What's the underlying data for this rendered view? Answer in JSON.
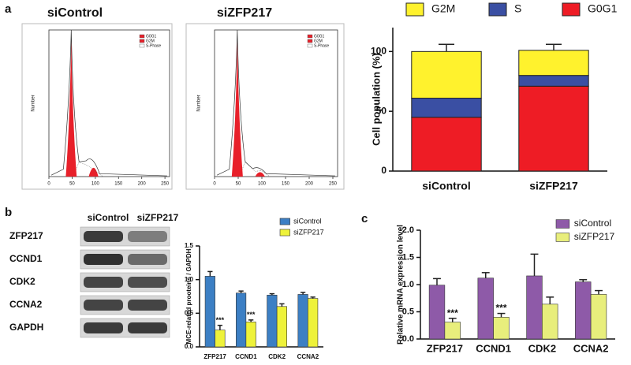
{
  "panel_labels": [
    "a",
    "b",
    "c"
  ],
  "blot": {
    "columns": [
      "siControl",
      "siZFP217"
    ],
    "rows": [
      "ZFP217",
      "CCND1",
      "CDK2",
      "CCNA2",
      "GAPDH"
    ]
  },
  "chart_data": [
    {
      "type": "flow",
      "title": "siControl",
      "ylabel": "Number",
      "xlim": [
        0,
        260
      ],
      "xticks": [
        0,
        50,
        100,
        150,
        200,
        250
      ],
      "legend": [
        {
          "name": "G0G1",
          "color": "#e8202a"
        },
        {
          "name": "G2M",
          "color": "#e8202a"
        },
        {
          "name": "S-Phase",
          "color": "#ffffff"
        }
      ]
    },
    {
      "type": "flow",
      "title": "siZFP217",
      "ylabel": "Number",
      "xlim": [
        0,
        260
      ],
      "xticks": [
        0,
        50,
        100,
        150,
        200,
        250
      ],
      "legend": [
        {
          "name": "G0G1",
          "color": "#e8202a"
        },
        {
          "name": "G2M",
          "color": "#e8202a"
        },
        {
          "name": "S-Phase",
          "color": "#ffffff"
        }
      ]
    },
    {
      "type": "stacked",
      "ylabel": "Cell population (%)",
      "categories": [
        "siControl",
        "siZFP217"
      ],
      "ylim": [
        0,
        120
      ],
      "yticks": [
        0,
        50,
        100
      ],
      "series": [
        {
          "name": "G0G1",
          "color": "#ee1c25",
          "values": [
            45,
            71
          ],
          "errors": [
            3,
            3
          ]
        },
        {
          "name": "S",
          "color": "#3a4fa3",
          "values": [
            16,
            9
          ],
          "errors": [
            3,
            2
          ]
        },
        {
          "name": "G2M",
          "color": "#fff22d",
          "values": [
            39,
            21
          ],
          "errors": [
            6,
            5
          ]
        }
      ]
    },
    {
      "type": "grouped",
      "ylabel": "MCE-related prooteins / GAPDH",
      "categories": [
        "ZFP217",
        "CCND1",
        "CDK2",
        "CCNA2"
      ],
      "ylim": [
        0,
        1.5
      ],
      "yticks": [
        {
          "value": 0,
          "label": "0.0"
        },
        0.5,
        {
          "value": 1,
          "label": "1.0"
        },
        1.5
      ],
      "series": [
        {
          "name": "siControl",
          "color": "#3c7fc4",
          "values": [
            1.05,
            0.8,
            0.77,
            0.78
          ],
          "errors": [
            0.07,
            0.03,
            0.02,
            0.03
          ]
        },
        {
          "name": "siZFP217",
          "color": "#eef23a",
          "values": [
            0.25,
            0.37,
            0.6,
            0.72
          ],
          "errors": [
            0.07,
            0.03,
            0.04,
            0.02
          ]
        }
      ],
      "annotations": [
        {
          "text": "***",
          "category": "ZFP217"
        },
        {
          "text": "***",
          "category": "CCND1"
        }
      ]
    },
    {
      "type": "grouped",
      "ylabel": "Relative mRNA expression level",
      "categories": [
        "ZFP217",
        "CCND1",
        "CDK2",
        "CCNA2"
      ],
      "ylim": [
        0,
        2
      ],
      "yticks": [
        {
          "value": 0,
          "label": "0.0"
        },
        0.5,
        {
          "value": 1,
          "label": "1.0"
        },
        1.5,
        {
          "value": 2,
          "label": "2.0"
        }
      ],
      "series": [
        {
          "name": "siControl",
          "color": "#8e5aa8",
          "values": [
            0.99,
            1.12,
            1.16,
            1.05
          ],
          "errors": [
            0.12,
            0.1,
            0.4,
            0.04
          ]
        },
        {
          "name": "siZFP217",
          "color": "#e8ee7c",
          "values": [
            0.31,
            0.4,
            0.64,
            0.82
          ],
          "errors": [
            0.07,
            0.07,
            0.13,
            0.07
          ]
        }
      ],
      "annotations": [
        {
          "text": "***",
          "category": "ZFP217"
        },
        {
          "text": "***",
          "category": "CCND1"
        }
      ]
    }
  ]
}
